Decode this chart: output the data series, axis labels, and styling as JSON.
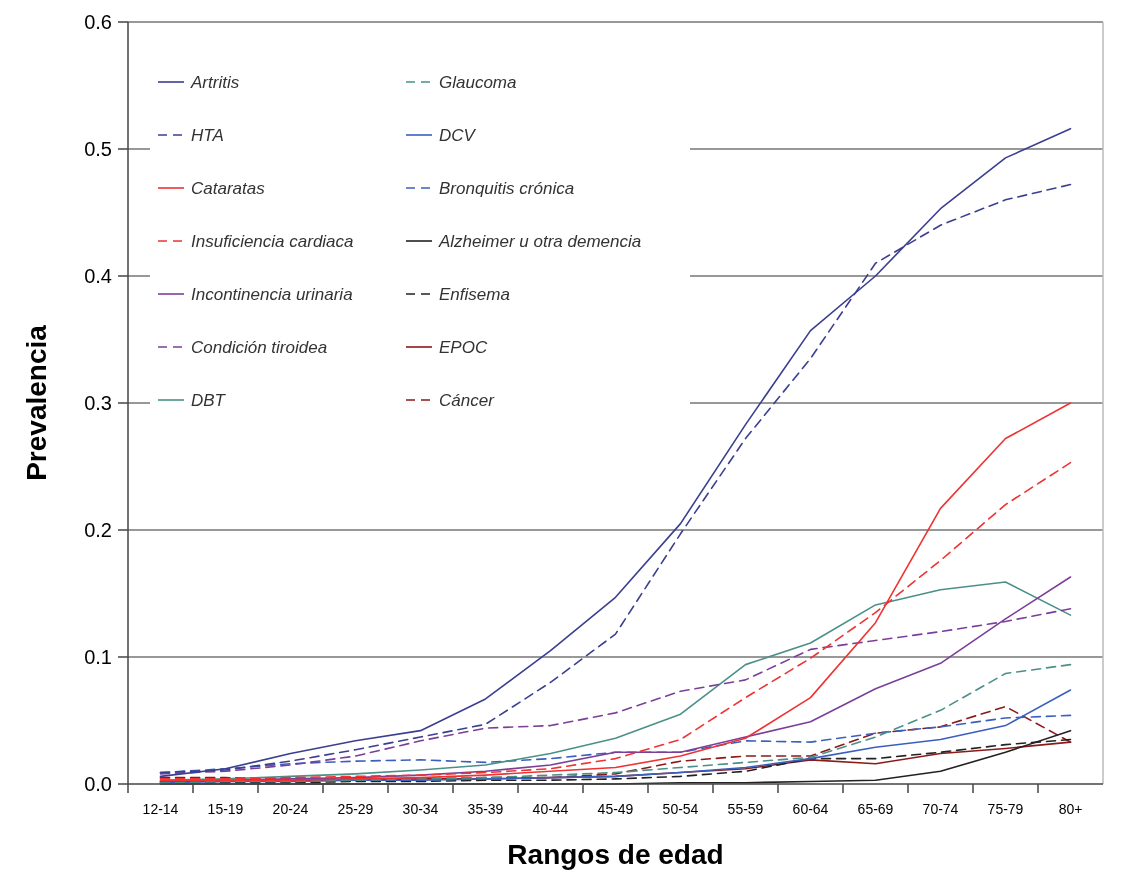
{
  "chart_data": {
    "type": "line",
    "xlabel": "Rangos de edad",
    "ylabel": "Prevalencia",
    "categories": [
      "12-14",
      "15-19",
      "20-24",
      "25-29",
      "30-34",
      "35-39",
      "40-44",
      "45-49",
      "50-54",
      "55-59",
      "60-64",
      "65-69",
      "70-74",
      "75-79",
      "80+"
    ],
    "ylim": [
      0,
      0.6
    ],
    "yticks": [
      {
        "value": 0,
        "label": "0.0"
      },
      0.1,
      0.2,
      0.3,
      0.4,
      0.5,
      0.6
    ],
    "grid": "y",
    "legend": "top left",
    "series": [
      {
        "name": "Artritis",
        "color": "#3b3f8f",
        "line_style": "solid",
        "values": [
          0.006,
          0.012,
          0.024,
          0.034,
          0.042,
          0.067,
          0.105,
          0.147,
          0.205,
          0.283,
          0.357,
          0.4,
          0.453,
          0.493,
          0.516
        ]
      },
      {
        "name": "HTA",
        "color": "#3b3f8f",
        "line_style": "dashed",
        "values": [
          0.009,
          0.011,
          0.018,
          0.027,
          0.037,
          0.047,
          0.08,
          0.118,
          0.197,
          0.272,
          0.335,
          0.41,
          0.44,
          0.46,
          0.472
        ]
      },
      {
        "name": "Cataratas",
        "color": "#ee3333",
        "line_style": "solid",
        "values": [
          0.003,
          0.003,
          0.003,
          0.004,
          0.005,
          0.007,
          0.01,
          0.013,
          0.022,
          0.036,
          0.068,
          0.127,
          0.217,
          0.272,
          0.3
        ]
      },
      {
        "name": "Insuficiencia cardiaca",
        "color": "#ee3333",
        "line_style": "dashed",
        "values": [
          0.004,
          0.004,
          0.005,
          0.006,
          0.007,
          0.009,
          0.012,
          0.02,
          0.035,
          0.068,
          0.099,
          0.135,
          0.176,
          0.22,
          0.253
        ]
      },
      {
        "name": "Incontinencia urinaria",
        "color": "#7b3f9a",
        "line_style": "solid",
        "values": [
          0.002,
          0.003,
          0.004,
          0.005,
          0.007,
          0.01,
          0.015,
          0.025,
          0.025,
          0.037,
          0.049,
          0.075,
          0.095,
          0.13,
          0.163
        ]
      },
      {
        "name": "Condición tiroidea",
        "color": "#7b3f9a",
        "line_style": "dashed",
        "values": [
          0.008,
          0.01,
          0.015,
          0.022,
          0.034,
          0.044,
          0.046,
          0.056,
          0.073,
          0.082,
          0.106,
          0.113,
          0.12,
          0.128,
          0.138
        ]
      },
      {
        "name": "DBT",
        "color": "#4a9088",
        "line_style": "solid",
        "values": [
          0.003,
          0.004,
          0.006,
          0.008,
          0.011,
          0.015,
          0.024,
          0.036,
          0.055,
          0.094,
          0.111,
          0.141,
          0.153,
          0.159,
          0.133
        ]
      },
      {
        "name": "Glaucoma",
        "color": "#4a9088",
        "line_style": "dashed",
        "values": [
          0.001,
          0.002,
          0.002,
          0.003,
          0.004,
          0.005,
          0.007,
          0.009,
          0.013,
          0.017,
          0.021,
          0.037,
          0.058,
          0.087,
          0.094
        ]
      },
      {
        "name": "DCV",
        "color": "#3a5fbf",
        "line_style": "solid",
        "values": [
          0.001,
          0.002,
          0.002,
          0.003,
          0.003,
          0.004,
          0.005,
          0.006,
          0.009,
          0.013,
          0.02,
          0.029,
          0.035,
          0.046,
          0.074
        ]
      },
      {
        "name": "Bronquitis crónica",
        "color": "#3a5fbf",
        "line_style": "dashed",
        "values": [
          0.009,
          0.012,
          0.016,
          0.018,
          0.019,
          0.017,
          0.02,
          0.025,
          0.025,
          0.034,
          0.033,
          0.04,
          0.045,
          0.052,
          0.054
        ]
      },
      {
        "name": "Alzheimer u otra demencia",
        "color": "#222222",
        "line_style": "solid",
        "values": [
          0,
          0,
          0,
          0,
          0,
          0,
          0,
          0,
          0.001,
          0.001,
          0.002,
          0.003,
          0.01,
          0.025,
          0.042
        ]
      },
      {
        "name": "Enfisema",
        "color": "#222222",
        "line_style": "dashed",
        "values": [
          0.001,
          0.001,
          0.001,
          0.002,
          0.002,
          0.003,
          0.003,
          0.004,
          0.006,
          0.01,
          0.02,
          0.02,
          0.025,
          0.031,
          0.035
        ]
      },
      {
        "name": "EPOC",
        "color": "#8b1a1a",
        "line_style": "solid",
        "values": [
          0.002,
          0.002,
          0.003,
          0.003,
          0.004,
          0.004,
          0.005,
          0.006,
          0.009,
          0.012,
          0.019,
          0.016,
          0.024,
          0.028,
          0.033
        ]
      },
      {
        "name": "Cáncer",
        "color": "#8b1a1a",
        "line_style": "dashed",
        "values": [
          0.005,
          0.005,
          0.004,
          0.004,
          0.004,
          0.005,
          0.005,
          0.008,
          0.018,
          0.022,
          0.022,
          0.04,
          0.045,
          0.061,
          0.033
        ]
      }
    ]
  }
}
